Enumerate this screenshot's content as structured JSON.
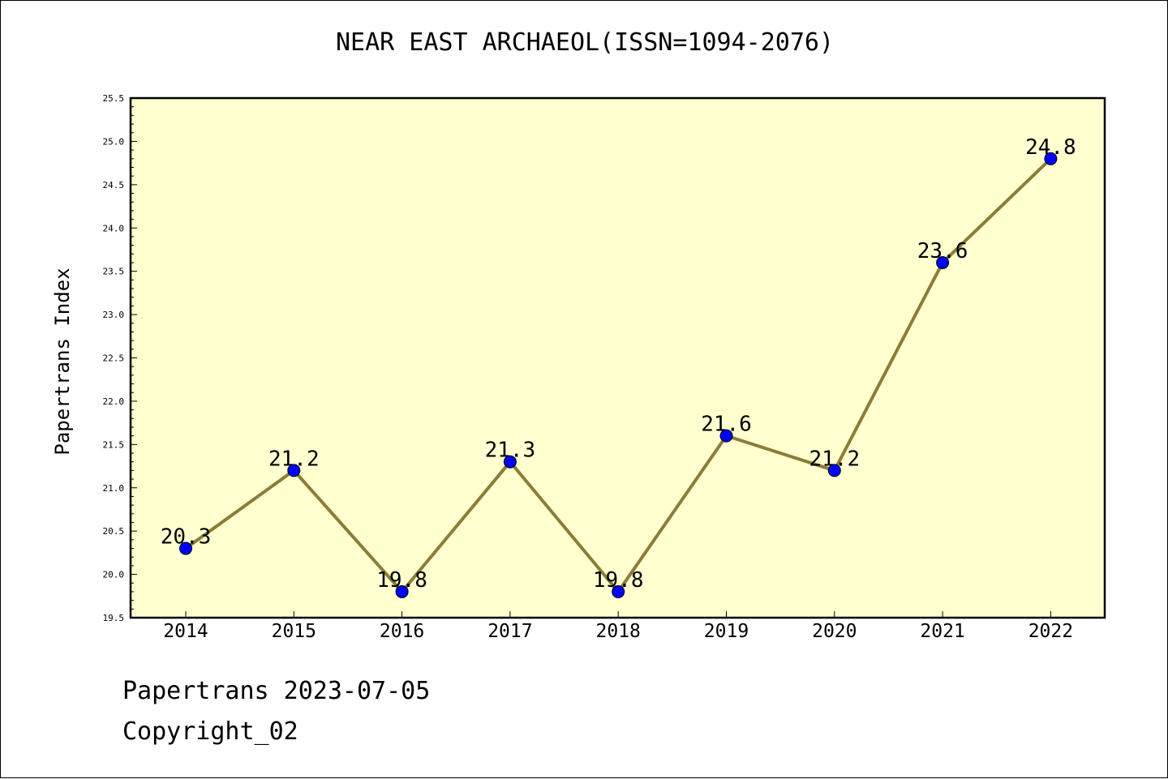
{
  "chart_data": {
    "type": "line",
    "title": "NEAR EAST ARCHAEOL(ISSN=1094-2076)",
    "xlabel": "",
    "ylabel": "Papertrans Index",
    "categories": [
      "2014",
      "2015",
      "2016",
      "2017",
      "2018",
      "2019",
      "2020",
      "2021",
      "2022"
    ],
    "values": [
      20.3,
      21.2,
      19.8,
      21.3,
      19.8,
      21.6,
      21.2,
      23.6,
      24.8
    ],
    "data_labels": [
      "20.3",
      "21.2",
      "19.8",
      "21.3",
      "19.8",
      "21.6",
      "21.2",
      "23.6",
      "24.8"
    ],
    "ylim": [
      19.5,
      25.5
    ],
    "yticks": [
      "19.5",
      "20.0",
      "20.5",
      "21.0",
      "21.5",
      "22.0",
      "22.5",
      "23.0",
      "23.5",
      "24.0",
      "24.5",
      "25.0",
      "25.5"
    ],
    "grid": false,
    "colors": {
      "plot_background": "#ffffd0",
      "line": "#8b7d36",
      "marker": "#0000ff"
    }
  },
  "footer": {
    "date_text": "Papertrans 2023-07-05",
    "copyright_text": "Copyright_02"
  }
}
